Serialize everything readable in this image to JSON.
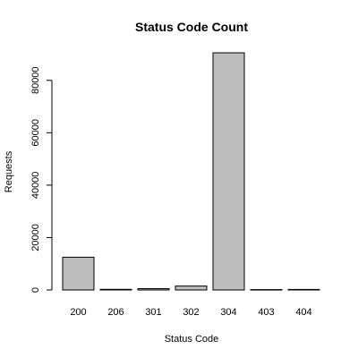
{
  "chart_data": {
    "type": "bar",
    "title": "Status Code Count",
    "xlabel": "Status Code",
    "ylabel": "Requests",
    "categories": [
      "200",
      "206",
      "301",
      "302",
      "304",
      "403",
      "404"
    ],
    "values": [
      12500,
      250,
      500,
      1500,
      90500,
      150,
      200
    ],
    "ylim": [
      0,
      90500
    ],
    "yticks": [
      0,
      20000,
      40000,
      60000,
      80000
    ],
    "ytick_labels": [
      "0",
      "20000",
      "40000",
      "60000",
      "80000"
    ],
    "colors": {
      "bar_fill": "#bebebe",
      "bar_stroke": "#000000"
    },
    "grid": false,
    "legend": "none"
  }
}
